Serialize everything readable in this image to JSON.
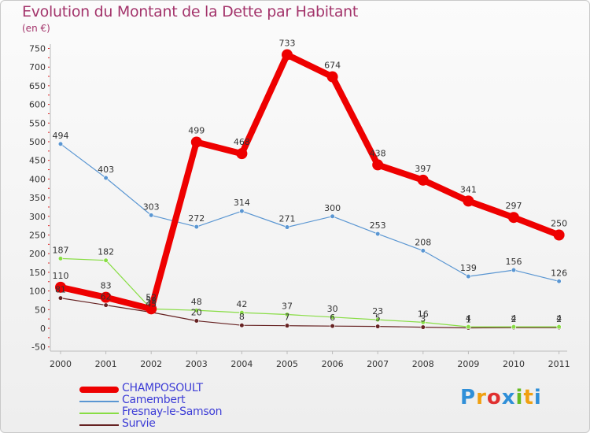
{
  "title": "Evolution du Montant de la Dette par Habitant",
  "subtitle": "(en €)",
  "chart_data": {
    "type": "line",
    "categories": [
      "2000",
      "2001",
      "2002",
      "2003",
      "2004",
      "2005",
      "2006",
      "2007",
      "2008",
      "2009",
      "2010",
      "2011"
    ],
    "ylim": [
      -50,
      750
    ],
    "yticks": [
      -50,
      0,
      50,
      100,
      150,
      200,
      250,
      300,
      350,
      400,
      450,
      500,
      550,
      600,
      650,
      700,
      750
    ],
    "grid": false,
    "legend_position": "bottom-left",
    "series": [
      {
        "name": "CHAMPOSOULT",
        "color": "#ee0000",
        "values": [
          110,
          83,
          52,
          499,
          468,
          733,
          674,
          438,
          397,
          341,
          297,
          250
        ]
      },
      {
        "name": "Camembert",
        "color": "#5a96d2",
        "values": [
          494,
          403,
          303,
          272,
          314,
          271,
          300,
          253,
          208,
          139,
          156,
          126
        ]
      },
      {
        "name": "Fresnay-le-Samson",
        "color": "#88dd44",
        "values": [
          187,
          182,
          52,
          48,
          42,
          37,
          30,
          23,
          16,
          4,
          4,
          4
        ]
      },
      {
        "name": "Survie",
        "color": "#662222",
        "values": [
          81,
          62,
          43,
          20,
          8,
          7,
          6,
          5,
          3,
          1,
          2,
          2
        ]
      }
    ]
  },
  "legend": {
    "items": [
      {
        "label": "CHAMPOSOULT",
        "color": "#ee0000"
      },
      {
        "label": "Camembert",
        "color": "#5a96d2"
      },
      {
        "label": "Fresnay-le-Samson",
        "color": "#88dd44"
      },
      {
        "label": "Survie",
        "color": "#662222"
      }
    ]
  },
  "logo": {
    "letters": [
      "P",
      "r",
      "o",
      "x",
      "i",
      "t",
      "i"
    ],
    "colors": [
      "#2f8fd8",
      "#f0a010",
      "#e03030",
      "#2f8fd8",
      "#66bb22",
      "#f0a010",
      "#2f8fd8"
    ]
  }
}
